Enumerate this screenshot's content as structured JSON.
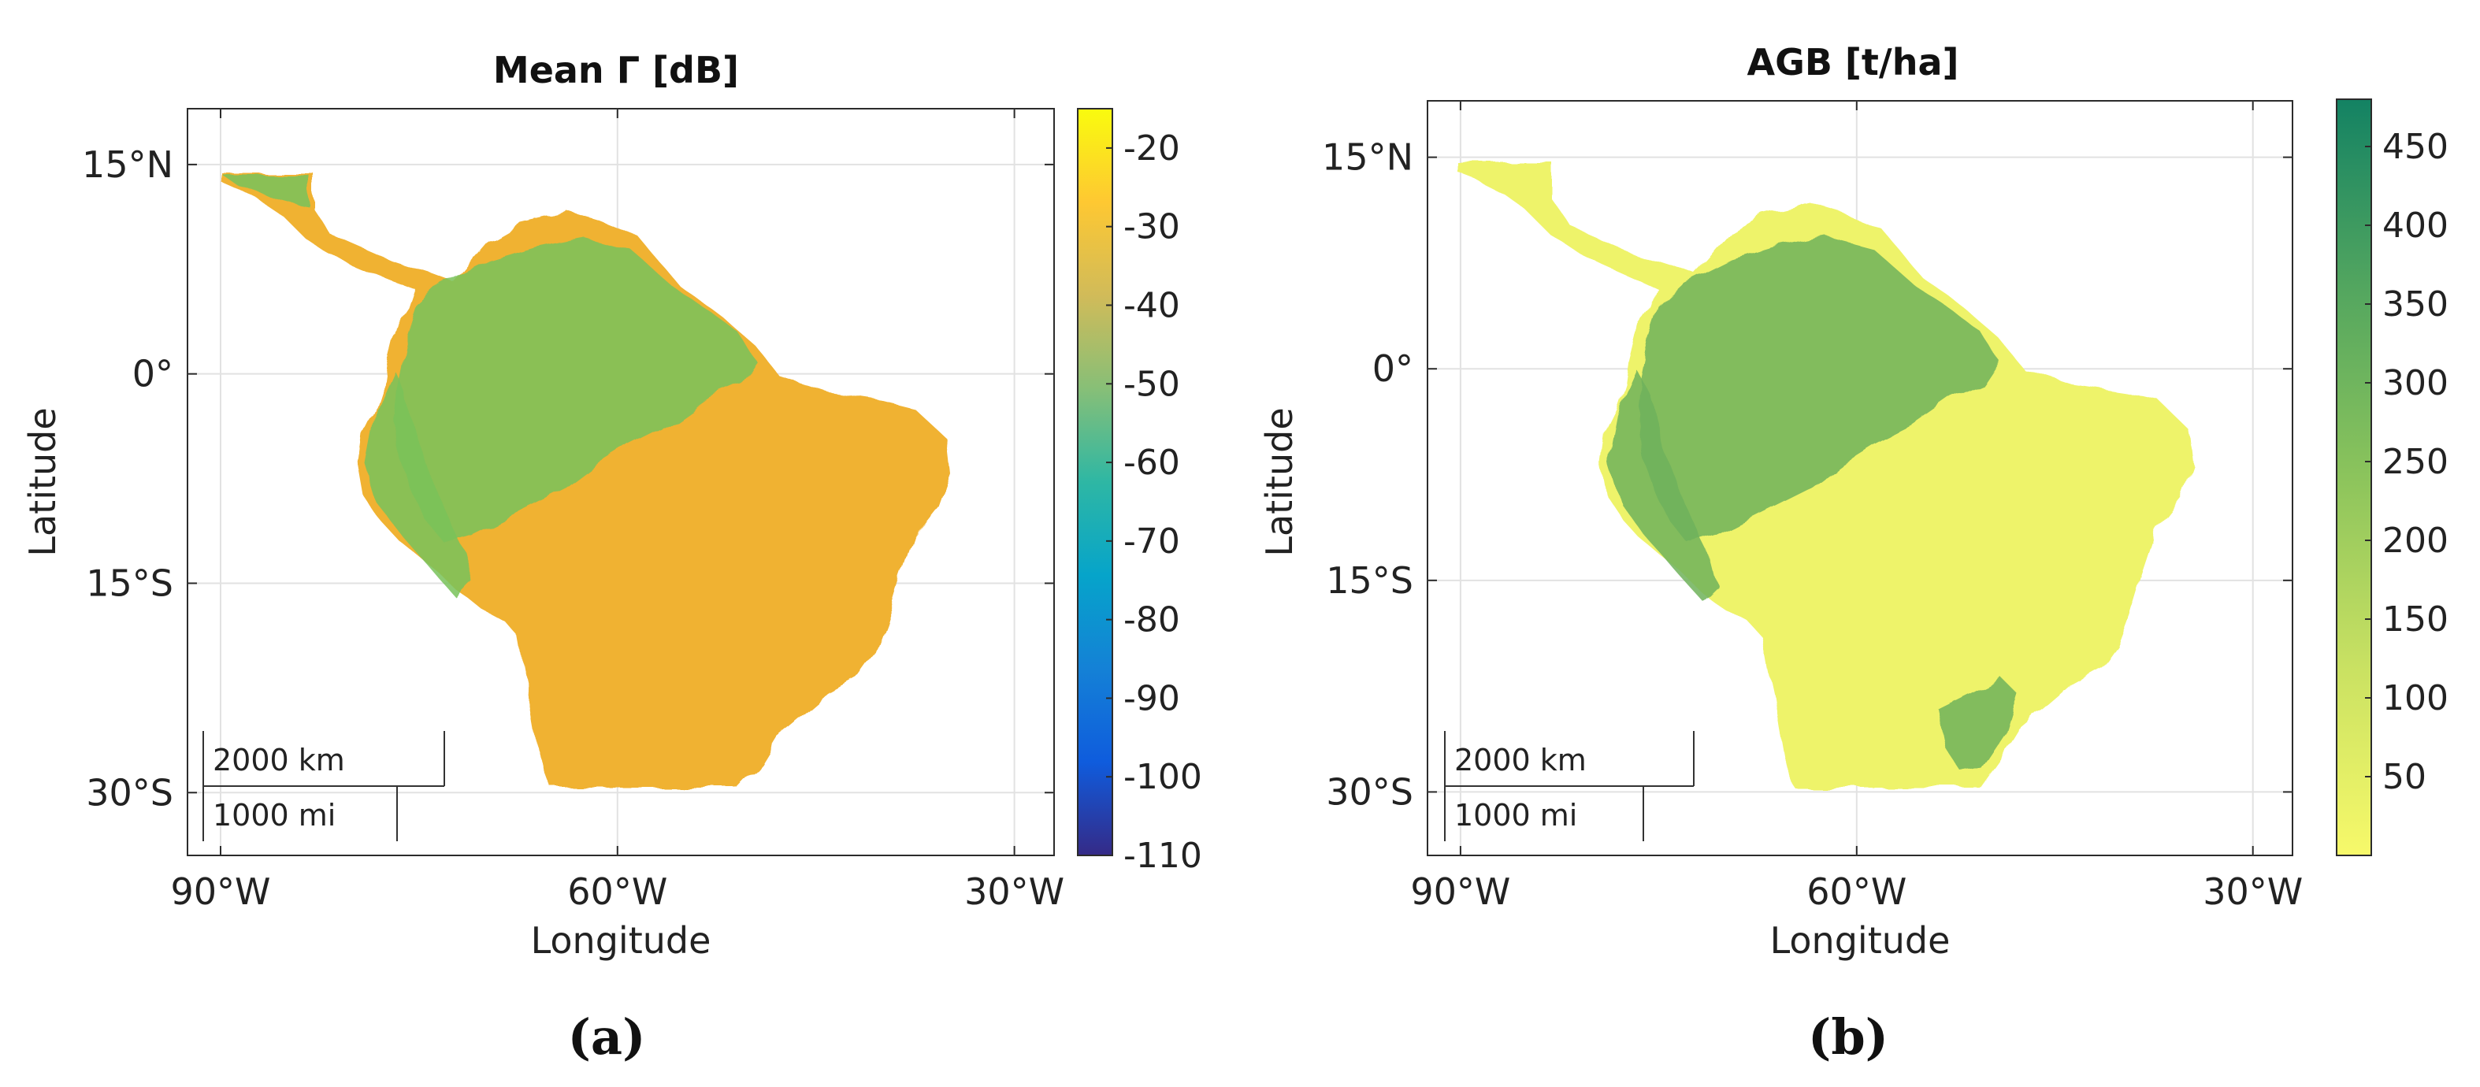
{
  "chart_data": [
    {
      "type": "heatmap",
      "panel_label": "(a)",
      "title": "Mean Γ [dB]",
      "xlabel": "Longitude",
      "ylabel": "Latitude",
      "xlim": [
        -92.5,
        -27
      ],
      "ylim": [
        -34.5,
        19
      ],
      "x_ticks": [
        -90,
        -60,
        -30
      ],
      "x_tick_labels": [
        "90°W",
        "60°W",
        "30°W"
      ],
      "y_ticks": [
        15,
        0,
        -15,
        -30
      ],
      "y_tick_labels": [
        "15°N",
        "0°",
        "15°S",
        "30°S"
      ],
      "grid": true,
      "colorbar": {
        "colormap": "parula",
        "range": [
          -110,
          -15
        ],
        "ticks": [
          -20,
          -30,
          -40,
          -50,
          -60,
          -70,
          -80,
          -90,
          -100,
          -110
        ],
        "tick_labels": [
          "-20",
          "-30",
          "-40",
          "-50",
          "-60",
          "-70",
          "-80",
          "-90",
          "-100",
          "-110"
        ],
        "colors": [
          "#352a87",
          "#0f5cdd",
          "#1481d6",
          "#06a4ca",
          "#2eb7a4",
          "#87bf77",
          "#d1bb59",
          "#fec832",
          "#f9fb0e"
        ]
      },
      "land_fill": "#f0b232",
      "forest_fill": "#78c25a",
      "scale_bar": {
        "km_label": "2000 km",
        "mi_label": "1000 mi"
      }
    },
    {
      "type": "heatmap",
      "panel_label": "(b)",
      "title": "AGB [t/ha]",
      "xlabel": "Longitude",
      "ylabel": "Latitude",
      "xlim": [
        -92.5,
        -27
      ],
      "ylim": [
        -34.5,
        19
      ],
      "x_ticks": [
        -90,
        -60,
        -30
      ],
      "x_tick_labels": [
        "90°W",
        "60°W",
        "30°W"
      ],
      "y_ticks": [
        15,
        0,
        -15,
        -30
      ],
      "y_tick_labels": [
        "15°N",
        "0°",
        "15°S",
        "30°S"
      ],
      "grid": true,
      "colorbar": {
        "colormap": "summer (reversed)",
        "range": [
          0,
          480
        ],
        "ticks": [
          450,
          400,
          350,
          300,
          250,
          200,
          150,
          100,
          50
        ],
        "tick_labels": [
          "450",
          "400",
          "350",
          "300",
          "250",
          "200",
          "150",
          "100",
          "50"
        ],
        "colors": [
          "#f7f96a",
          "#c9e162",
          "#8cc45c",
          "#53a65f",
          "#138263"
        ]
      },
      "land_fill": "#eef36a",
      "forest_fill": "#6fb25b",
      "scale_bar": {
        "km_label": "2000 km",
        "mi_label": "1000 mi"
      }
    }
  ]
}
